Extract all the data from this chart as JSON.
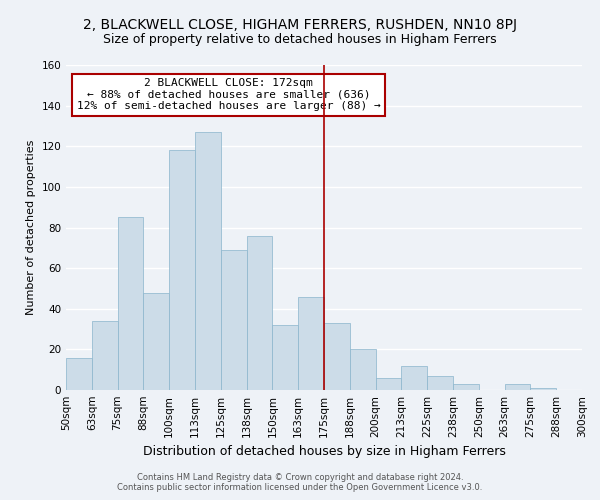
{
  "title": "2, BLACKWELL CLOSE, HIGHAM FERRERS, RUSHDEN, NN10 8PJ",
  "subtitle": "Size of property relative to detached houses in Higham Ferrers",
  "xlabel": "Distribution of detached houses by size in Higham Ferrers",
  "ylabel": "Number of detached properties",
  "bin_labels": [
    "50sqm",
    "63sqm",
    "75sqm",
    "88sqm",
    "100sqm",
    "113sqm",
    "125sqm",
    "138sqm",
    "150sqm",
    "163sqm",
    "175sqm",
    "188sqm",
    "200sqm",
    "213sqm",
    "225sqm",
    "238sqm",
    "250sqm",
    "263sqm",
    "275sqm",
    "288sqm",
    "300sqm"
  ],
  "bar_values": [
    16,
    34,
    85,
    48,
    118,
    127,
    69,
    76,
    32,
    46,
    33,
    20,
    6,
    12,
    7,
    3,
    0,
    3,
    1,
    0
  ],
  "bar_color": "#ccdce8",
  "bar_edge_color": "#8ab4cc",
  "ylim": [
    0,
    160
  ],
  "yticks": [
    0,
    20,
    40,
    60,
    80,
    100,
    120,
    140,
    160
  ],
  "vline_color": "#aa0000",
  "annotation_title": "2 BLACKWELL CLOSE: 172sqm",
  "annotation_line1": "← 88% of detached houses are smaller (636)",
  "annotation_line2": "12% of semi-detached houses are larger (88) →",
  "annotation_box_facecolor": "#ffffff",
  "annotation_box_edgecolor": "#aa0000",
  "footer_line1": "Contains HM Land Registry data © Crown copyright and database right 2024.",
  "footer_line2": "Contains public sector information licensed under the Open Government Licence v3.0.",
  "background_color": "#eef2f7",
  "grid_color": "#ffffff",
  "title_fontsize": 10,
  "subtitle_fontsize": 9,
  "xlabel_fontsize": 9,
  "ylabel_fontsize": 8,
  "tick_fontsize": 7.5,
  "annotation_fontsize": 8,
  "footer_fontsize": 6
}
